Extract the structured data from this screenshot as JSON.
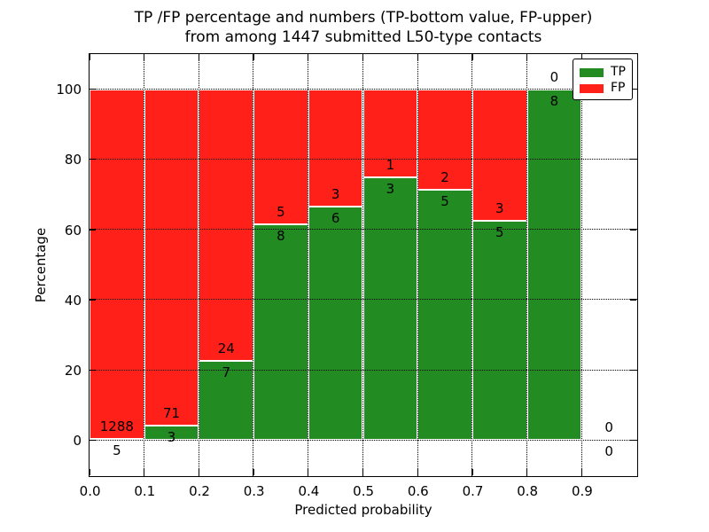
{
  "title": {
    "line1": "TP /FP percentage and numbers (TP-bottom value, FP-upper)",
    "line2": "from among 1447 submitted L50-type contacts"
  },
  "axes": {
    "ylabel": "Percentage",
    "xlabel": "Predicted probability",
    "ytick_labels": [
      "0",
      "20",
      "40",
      "60",
      "80",
      "100"
    ],
    "ytick_values": [
      0,
      20,
      40,
      60,
      80,
      100
    ],
    "xtick_labels": [
      "0.0",
      "0.1",
      "0.2",
      "0.3",
      "0.4",
      "0.5",
      "0.6",
      "0.7",
      "0.8",
      "0.9"
    ],
    "xtick_values": [
      0.0,
      0.1,
      0.2,
      0.3,
      0.4,
      0.5,
      0.6,
      0.7,
      0.8,
      0.9
    ],
    "ylim": [
      -10,
      110
    ],
    "xlim": [
      0.0,
      1.0
    ],
    "grid_style": "dotted"
  },
  "legend": {
    "position": "upper-right",
    "entries": [
      {
        "label": "TP",
        "color": "#228b22"
      },
      {
        "label": "FP",
        "color": "#ff2019"
      }
    ]
  },
  "colors": {
    "tp_green": "#228b22",
    "fp_red": "#ff2019",
    "background": "#ffffff",
    "text": "#000000"
  },
  "chart_data": {
    "type": "bar",
    "stacked": true,
    "normalized_to_percent": true,
    "title": "TP /FP percentage and numbers (TP-bottom value, FP-upper) from among 1447 submitted L50-type contacts",
    "xlabel": "Predicted probability",
    "ylabel": "Percentage",
    "xlim": [
      0.0,
      1.0
    ],
    "ylim": [
      -10,
      110
    ],
    "legend_position": "upper-right",
    "grid": true,
    "total_contacts": 1447,
    "bin_edges": [
      0.0,
      0.1,
      0.2,
      0.3,
      0.4,
      0.5,
      0.6,
      0.7,
      0.8,
      0.9,
      1.0
    ],
    "series": [
      {
        "name": "TP",
        "color": "#228b22",
        "counts": [
          5,
          3,
          7,
          8,
          6,
          3,
          5,
          5,
          8,
          0
        ]
      },
      {
        "name": "FP",
        "color": "#ff2019",
        "counts": [
          1288,
          71,
          24,
          5,
          3,
          1,
          2,
          3,
          0,
          0
        ]
      }
    ],
    "tp_percent_of_bin": [
      0.39,
      4.05,
      22.58,
      61.54,
      66.67,
      75.0,
      71.43,
      62.5,
      100.0,
      0.0
    ],
    "fp_percent_of_bin": [
      99.61,
      95.95,
      77.42,
      38.46,
      33.33,
      25.0,
      28.57,
      37.5,
      0.0,
      0.0
    ]
  }
}
